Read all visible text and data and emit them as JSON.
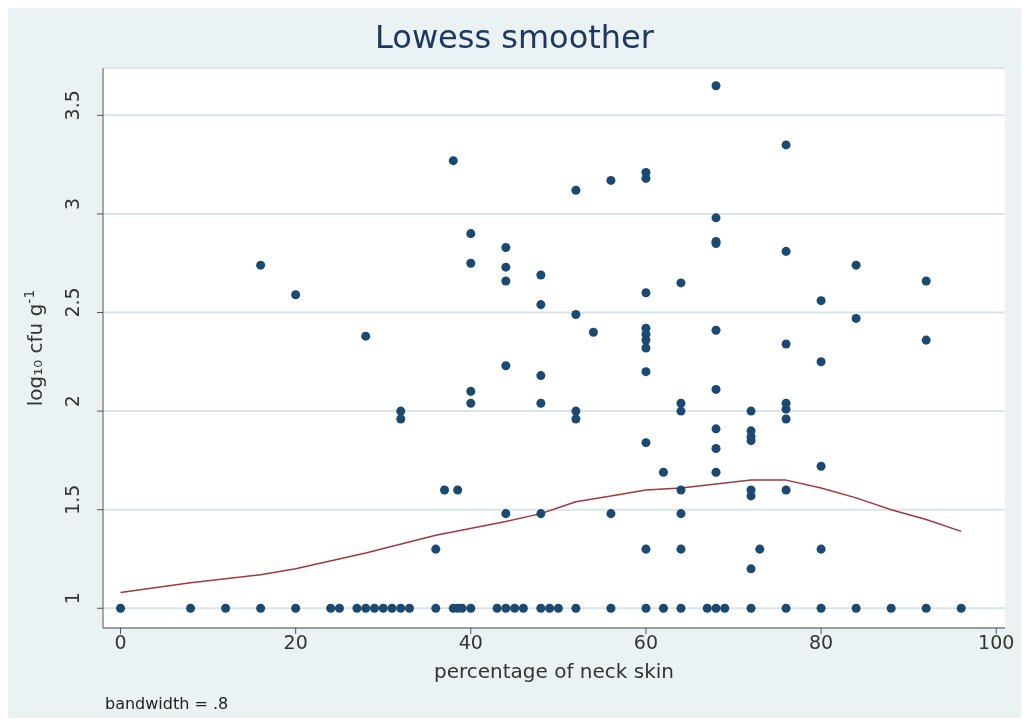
{
  "chart_data": {
    "type": "scatter",
    "title": "Lowess smoother",
    "xlabel": "percentage of neck skin",
    "ylabel": "log₁₀ cfu g$^{-1}$",
    "annotations": [
      "bandwidth = .8"
    ],
    "xlim": [
      -2,
      101
    ],
    "xticks": [
      0,
      20,
      40,
      60,
      80,
      100
    ],
    "ylim": [
      0.9,
      3.74
    ],
    "yticks": [
      1,
      1.5,
      2,
      2.5,
      3,
      3.5
    ],
    "grid": "y",
    "marker": "circle",
    "series": [
      {
        "color": "#1a4a72",
        "x": [
          0,
          8,
          12,
          16,
          20,
          24,
          25,
          27,
          28,
          29,
          30,
          31,
          32,
          33,
          36,
          38,
          38.5,
          39,
          40,
          43,
          44,
          45,
          46,
          48,
          49,
          50,
          52,
          56,
          60,
          62,
          64,
          67,
          68,
          69,
          72,
          76,
          80,
          84,
          88,
          92,
          96,
          16,
          20,
          28,
          32,
          32,
          36,
          37,
          38.5,
          38,
          40,
          40,
          40,
          40,
          44,
          44,
          44,
          44,
          44,
          48,
          48,
          48,
          48,
          48,
          52,
          52,
          52,
          52,
          54,
          56,
          56,
          60,
          60,
          60,
          60,
          60,
          60,
          60,
          60,
          60,
          60,
          62,
          64,
          64,
          64,
          64,
          64,
          64,
          68,
          68,
          68,
          68,
          68,
          68,
          68,
          68,
          68,
          72,
          72,
          72,
          72,
          72,
          72,
          72,
          73,
          76,
          76,
          76,
          76,
          76,
          76,
          76,
          80,
          80,
          80,
          80,
          84,
          84,
          92,
          92
        ],
        "values": [
          1,
          1,
          1,
          1,
          1,
          1,
          1,
          1,
          1,
          1,
          1,
          1,
          1,
          1,
          1,
          1,
          1,
          1,
          1,
          1,
          1,
          1,
          1,
          1,
          1,
          1,
          1,
          1,
          1,
          1,
          1,
          1,
          1,
          1,
          1,
          1,
          1,
          1,
          1,
          1,
          1,
          2.74,
          2.59,
          2.38,
          2.0,
          1.96,
          1.3,
          1.6,
          1.6,
          3.27,
          2.9,
          2.75,
          2.1,
          2.04,
          2.83,
          2.73,
          2.66,
          2.23,
          1.48,
          2.69,
          2.54,
          2.18,
          2.04,
          1.48,
          3.12,
          2.49,
          2.0,
          1.96,
          2.4,
          3.17,
          1.48,
          3.21,
          3.18,
          2.6,
          2.42,
          2.39,
          2.36,
          2.32,
          2.2,
          1.84,
          1.3,
          1.69,
          2.65,
          2.04,
          2.0,
          1.6,
          1.48,
          1.3,
          3.65,
          2.98,
          2.86,
          2.85,
          2.41,
          2.11,
          1.91,
          1.81,
          1.69,
          2.0,
          1.9,
          1.87,
          1.85,
          1.6,
          1.57,
          1.2,
          1.3,
          3.35,
          2.81,
          2.34,
          2.04,
          2.01,
          1.96,
          1.6,
          2.56,
          2.25,
          1.72,
          1.3,
          2.74,
          2.47,
          2.66,
          2.36
        ]
      },
      {
        "type": "line",
        "color": "#a0393a",
        "marker": "none",
        "x": [
          0,
          8,
          16,
          20,
          28,
          36,
          44,
          48,
          52,
          56,
          60,
          64,
          68,
          72,
          76,
          80,
          84,
          88,
          92,
          96
        ],
        "values": [
          1.08,
          1.13,
          1.17,
          1.2,
          1.28,
          1.37,
          1.44,
          1.48,
          1.54,
          1.57,
          1.6,
          1.61,
          1.63,
          1.65,
          1.65,
          1.61,
          1.56,
          1.5,
          1.45,
          1.39
        ]
      }
    ]
  }
}
